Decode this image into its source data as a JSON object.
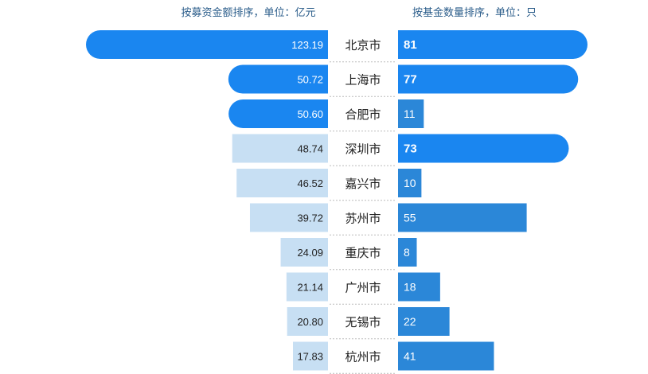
{
  "left_header": "按募资金额排序，单位：亿元",
  "right_header": "按基金数量排序，单位：只",
  "colors": {
    "highlight": "#1a86f0",
    "light": "#c7dff3",
    "medium": "#2b87d8",
    "divider": "#bbbbbb",
    "header_text": "#2a5c8a"
  },
  "chart_data": {
    "type": "bar",
    "categories": [
      "北京市",
      "上海市",
      "合肥市",
      "深圳市",
      "嘉兴市",
      "苏州市",
      "重庆市",
      "广州市",
      "无锡市",
      "杭州市"
    ],
    "series": [
      {
        "name": "按募资金额排序，单位：亿元",
        "values": [
          123.19,
          50.72,
          50.6,
          48.74,
          46.52,
          39.72,
          24.09,
          21.14,
          20.8,
          17.83
        ],
        "labels": [
          "123.19",
          "50.72",
          "50.60",
          "48.74",
          "46.52",
          "39.72",
          "24.09",
          "21.14",
          "20.80",
          "17.83"
        ],
        "highlighted": [
          true,
          true,
          true,
          false,
          false,
          false,
          false,
          false,
          false,
          false
        ]
      },
      {
        "name": "按基金数量排序，单位：只",
        "values": [
          81,
          77,
          11,
          73,
          10,
          55,
          8,
          18,
          22,
          41
        ],
        "labels": [
          "81",
          "77",
          "11",
          "73",
          "10",
          "55",
          "8",
          "18",
          "22",
          "41"
        ],
        "highlighted": [
          true,
          true,
          false,
          true,
          false,
          false,
          false,
          false,
          false,
          false
        ]
      }
    ]
  }
}
